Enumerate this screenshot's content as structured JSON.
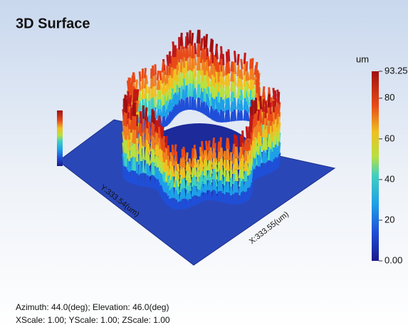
{
  "chart_data": {
    "type": "surface",
    "title": "3D Surface",
    "x_label": "X:333.55(um)",
    "y_label": "Y:333.54(um)",
    "colorbar": {
      "unit": "um",
      "lim": [
        0,
        93.25
      ],
      "ticks": [
        {
          "value": 0,
          "label": "0.00"
        },
        20,
        40,
        60,
        80,
        93.25
      ]
    },
    "footer": [
      "Azimuth: 44.0(deg); Elevation: 46.0(deg)",
      "XScale: 1.00; YScale: 1.00; ZScale: 1.00"
    ]
  }
}
